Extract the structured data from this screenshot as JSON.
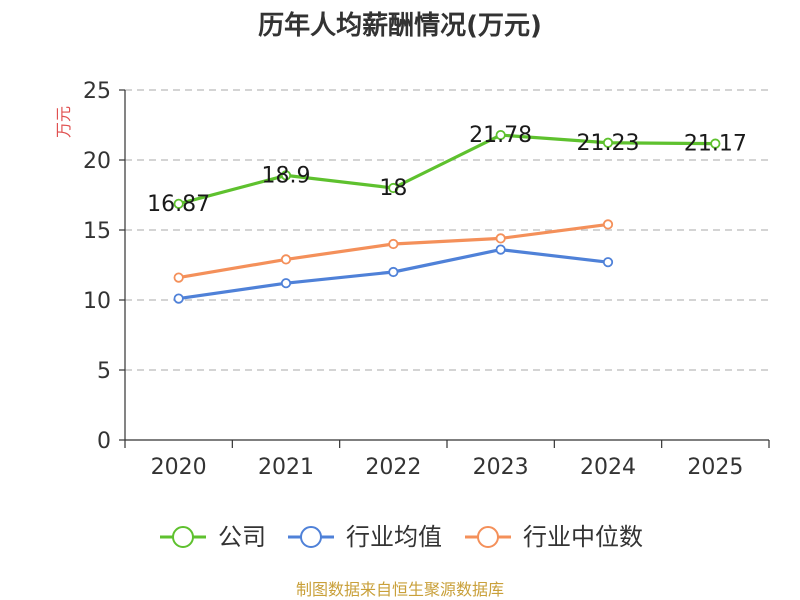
{
  "chart_data": {
    "type": "line",
    "title": "历年人均薪酬情况(万元)",
    "ylabel": "万元",
    "xlabel": "",
    "ylim": [
      0,
      25
    ],
    "yticks": [
      0,
      5,
      10,
      15,
      20,
      25
    ],
    "categories": [
      "2020",
      "2021",
      "2022",
      "2023",
      "2024",
      "2025"
    ],
    "grid": true,
    "legend_position": "bottom",
    "series": [
      {
        "name": "公司",
        "color": "#5ec12e",
        "values": [
          16.87,
          18.9,
          18,
          21.78,
          21.23,
          21.17
        ],
        "labels": [
          "16.87",
          "18.9",
          "18",
          "21.78",
          "21.23",
          "21.17"
        ]
      },
      {
        "name": "行业均值",
        "color": "#4f81d8",
        "values": [
          10.1,
          11.2,
          12.0,
          13.6,
          12.7,
          null
        ],
        "labels": []
      },
      {
        "name": "行业中位数",
        "color": "#f4905a",
        "values": [
          11.6,
          12.9,
          14.0,
          14.4,
          15.4,
          null
        ],
        "labels": []
      }
    ]
  },
  "source": "制图数据来自恒生聚源数据库",
  "colors": {
    "axis": "#333333",
    "grid": "#bbbbbb",
    "unit": "#e05050",
    "source": "#c9a03a"
  }
}
